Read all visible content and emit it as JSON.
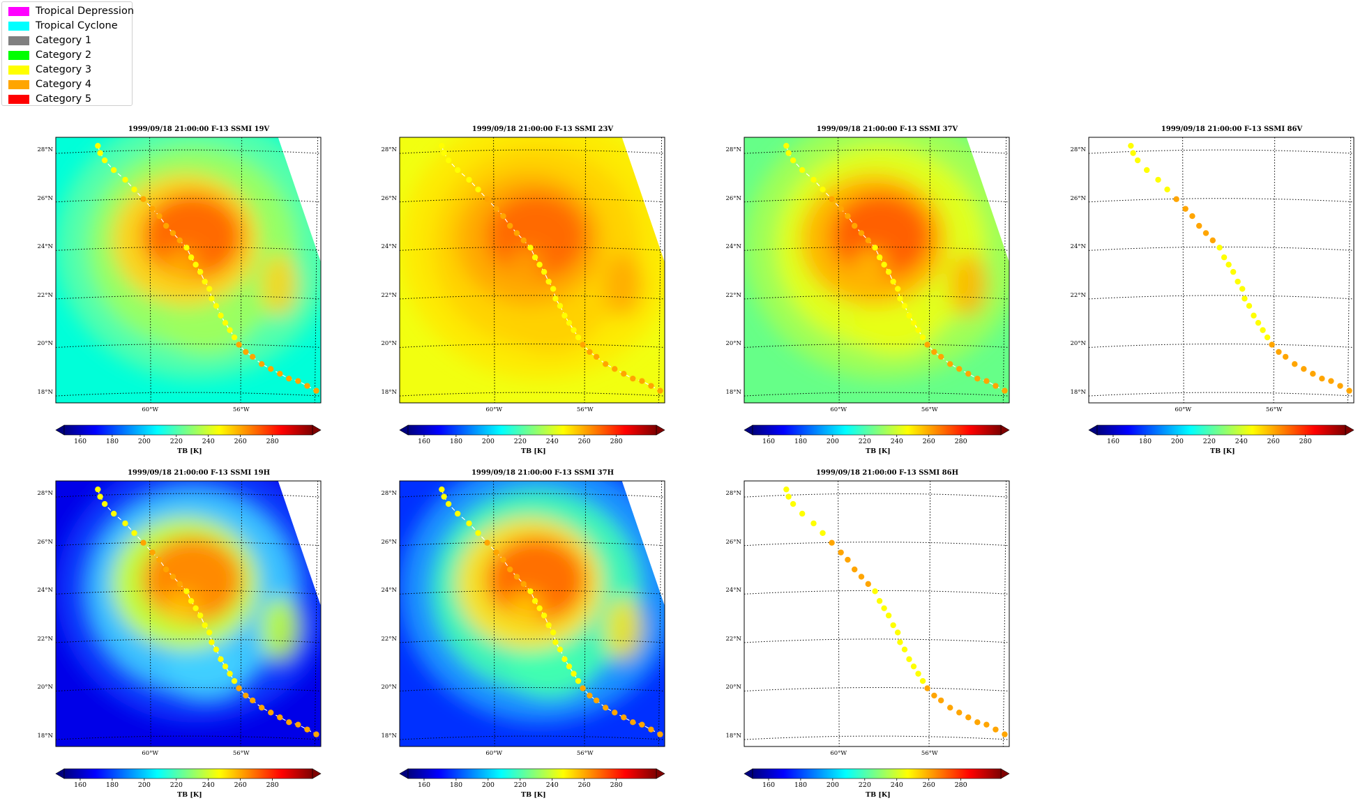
{
  "legend": [
    {
      "label": "Tropical Depression",
      "color": "#ff00ff"
    },
    {
      "label": "Tropical Cyclone",
      "color": "#00ffff"
    },
    {
      "label": "Category 1",
      "color": "#808080"
    },
    {
      "label": "Category 2",
      "color": "#00ff00"
    },
    {
      "label": "Category 3",
      "color": "#ffff00"
    },
    {
      "label": "Category 4",
      "color": "#ffa500"
    },
    {
      "label": "Category 5",
      "color": "#ff0000"
    }
  ],
  "chart_data": [
    {
      "type": "heatmap",
      "title": "1999/09/18 21:00:00  F-13 SSMI 19V",
      "channel": "19V",
      "style": "v",
      "swath": true,
      "yticks": [
        "18°N",
        "20°N",
        "22°N",
        "24°N",
        "26°N",
        "28°N"
      ],
      "xticks": [
        "60°W",
        "56°W"
      ],
      "colorbar": {
        "ticks": [
          "160",
          "180",
          "200",
          "220",
          "240",
          "260",
          "280"
        ],
        "label": "TB [K]",
        "range": [
          150,
          305
        ]
      }
    },
    {
      "type": "heatmap",
      "title": "1999/09/18 21:00:00  F-13 SSMI 23V",
      "channel": "23V",
      "style": "v23",
      "swath": true,
      "yticks": [
        "18°N",
        "20°N",
        "22°N",
        "24°N",
        "26°N",
        "28°N"
      ],
      "xticks": [
        "60°W",
        "56°W"
      ],
      "colorbar": {
        "ticks": [
          "160",
          "180",
          "200",
          "220",
          "240",
          "260",
          "280"
        ],
        "label": "TB [K]",
        "range": [
          150,
          305
        ]
      }
    },
    {
      "type": "heatmap",
      "title": "1999/09/18 21:00:00  F-13 SSMI 37V",
      "channel": "37V",
      "style": "v37",
      "swath": true,
      "yticks": [
        "18°N",
        "20°N",
        "22°N",
        "24°N",
        "26°N",
        "28°N"
      ],
      "xticks": [
        "60°W",
        "56°W"
      ],
      "colorbar": {
        "ticks": [
          "160",
          "180",
          "200",
          "220",
          "240",
          "260",
          "280"
        ],
        "label": "TB [K]",
        "range": [
          150,
          305
        ]
      }
    },
    {
      "type": "heatmap",
      "title": "1999/09/18 21:00:00  F-13 SSMI 86V",
      "channel": "86V",
      "style": "empty",
      "swath": false,
      "yticks": [
        "18°N",
        "20°N",
        "22°N",
        "24°N",
        "26°N",
        "28°N"
      ],
      "xticks": [
        "60°W",
        "56°W"
      ],
      "colorbar": {
        "ticks": [
          "160",
          "180",
          "200",
          "220",
          "240",
          "260",
          "280"
        ],
        "label": "TB [K]",
        "range": [
          150,
          305
        ]
      }
    },
    {
      "type": "heatmap",
      "title": "1999/09/18 21:00:00  F-13 SSMI 19H",
      "channel": "19H",
      "style": "h",
      "swath": true,
      "yticks": [
        "18°N",
        "20°N",
        "22°N",
        "24°N",
        "26°N",
        "28°N"
      ],
      "xticks": [
        "60°W",
        "56°W"
      ],
      "colorbar": {
        "ticks": [
          "160",
          "180",
          "200",
          "220",
          "240",
          "260",
          "280"
        ],
        "label": "TB [K]",
        "range": [
          150,
          305
        ]
      }
    },
    {
      "type": "heatmap",
      "title": "1999/09/18 21:00:00  F-13 SSMI 37H",
      "channel": "37H",
      "style": "h37",
      "swath": true,
      "yticks": [
        "18°N",
        "20°N",
        "22°N",
        "24°N",
        "26°N",
        "28°N"
      ],
      "xticks": [
        "60°W",
        "56°W"
      ],
      "colorbar": {
        "ticks": [
          "160",
          "180",
          "200",
          "220",
          "240",
          "260",
          "280"
        ],
        "label": "TB [K]",
        "range": [
          150,
          305
        ]
      }
    },
    {
      "type": "heatmap",
      "title": "1999/09/18 21:00:00  F-13 SSMI 86H",
      "channel": "86H",
      "style": "empty",
      "swath": false,
      "yticks": [
        "18°N",
        "20°N",
        "22°N",
        "24°N",
        "26°N",
        "28°N"
      ],
      "xticks": [
        "60°W",
        "56°W"
      ],
      "colorbar": {
        "ticks": [
          "160",
          "180",
          "200",
          "220",
          "240",
          "260",
          "280"
        ],
        "label": "TB [K]",
        "range": [
          150,
          305
        ]
      }
    }
  ],
  "track": {
    "lon": [
      -62.3,
      -62.2,
      -62.0,
      -61.6,
      -61.1,
      -60.7,
      -60.3,
      -59.9,
      -59.6,
      -59.3,
      -59.0,
      -58.7,
      -58.4,
      -58.2,
      -58.0,
      -57.8,
      -57.6,
      -57.4,
      -57.3,
      -57.1,
      -56.9,
      -56.7,
      -56.5,
      -56.3,
      -56.1,
      -55.8,
      -55.5,
      -55.1,
      -54.7,
      -54.3,
      -53.9,
      -53.5,
      -53.1,
      -52.7
    ],
    "lat": [
      28.2,
      27.9,
      27.6,
      27.2,
      26.8,
      26.4,
      26.0,
      25.6,
      25.3,
      24.9,
      24.6,
      24.3,
      24.0,
      23.6,
      23.3,
      23.0,
      22.6,
      22.3,
      21.9,
      21.6,
      21.2,
      20.9,
      20.6,
      20.3,
      20.0,
      19.7,
      19.5,
      19.2,
      19.0,
      18.8,
      18.6,
      18.5,
      18.3,
      18.1
    ],
    "category": [
      "cat3",
      "cat3",
      "cat3",
      "cat3",
      "cat3",
      "cat3",
      "cat4",
      "cat4",
      "cat4",
      "cat4",
      "cat4",
      "cat4",
      "cat3",
      "cat3",
      "cat3",
      "cat3",
      "cat3",
      "cat3",
      "cat3",
      "cat3",
      "cat3",
      "cat3",
      "cat3",
      "cat3",
      "cat4",
      "cat4",
      "cat4",
      "cat4",
      "cat4",
      "cat4",
      "cat4",
      "cat4",
      "cat4",
      "cat4"
    ]
  },
  "colors": {
    "cat3": "#ffff00",
    "cat4": "#ffa500",
    "grid": "#000000",
    "axes": "#000000"
  }
}
